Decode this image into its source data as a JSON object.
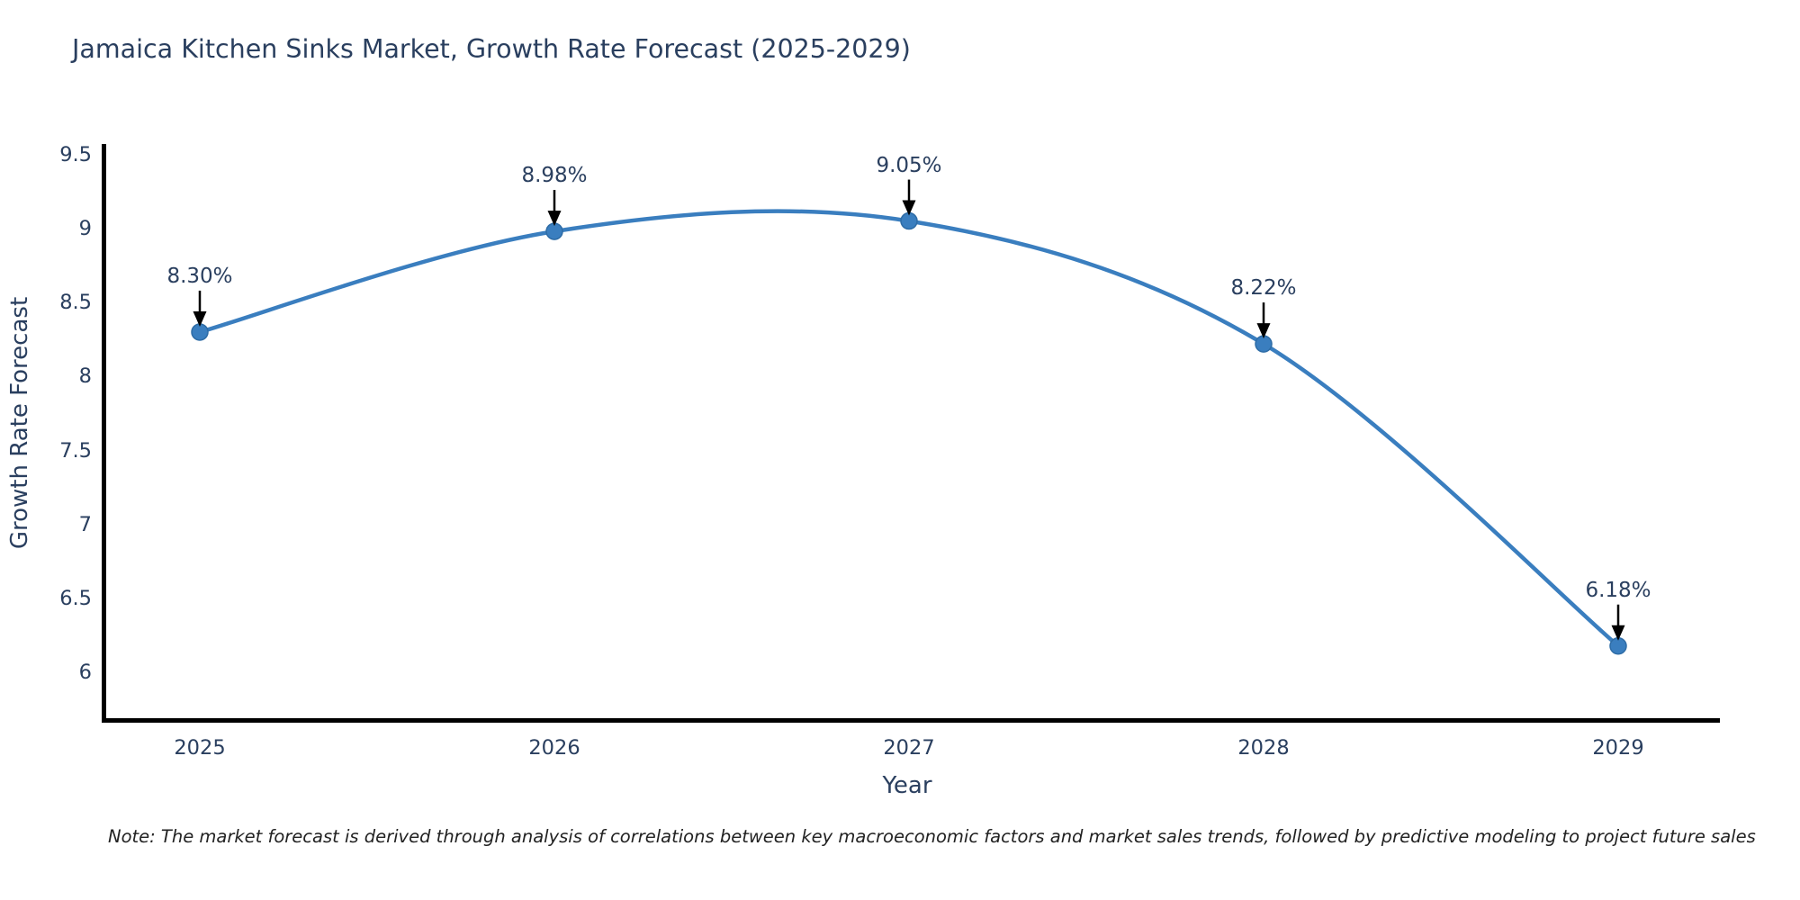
{
  "chart_data": {
    "type": "line",
    "title": "Jamaica Kitchen Sinks Market, Growth Rate Forecast (2025-2029)",
    "xlabel": "Year",
    "ylabel": "Growth Rate Forecast",
    "x": [
      2025,
      2026,
      2027,
      2028,
      2029
    ],
    "series": [
      {
        "name": "Growth Rate Forecast",
        "values": [
          8.3,
          8.98,
          9.05,
          8.22,
          6.18
        ],
        "point_labels": [
          "8.30%",
          "8.98%",
          "9.05%",
          "8.22%",
          "6.18%"
        ]
      }
    ],
    "yticks": [
      "6",
      "6.5",
      "7",
      "7.5",
      "8",
      "8.5",
      "9",
      "9.5"
    ],
    "ytick_values": [
      6,
      6.5,
      7,
      7.5,
      8,
      8.5,
      9,
      9.5
    ],
    "ylim": [
      5.68,
      9.57
    ],
    "grid": false,
    "legend_position": "none",
    "line_shape": "spline",
    "colors": {
      "line": "#3a7ebf",
      "marker": "#3a7ebf",
      "marker_edge": "#2e6ca6",
      "axis": "#000000",
      "annotation_arrow": "#000000",
      "text": "#2a3f5f"
    }
  },
  "footnote": {
    "text": "Note: The market forecast is derived through analysis of correlations between key macroeconomic factors and market sales trends, followed by predictive modeling to project future sales"
  }
}
